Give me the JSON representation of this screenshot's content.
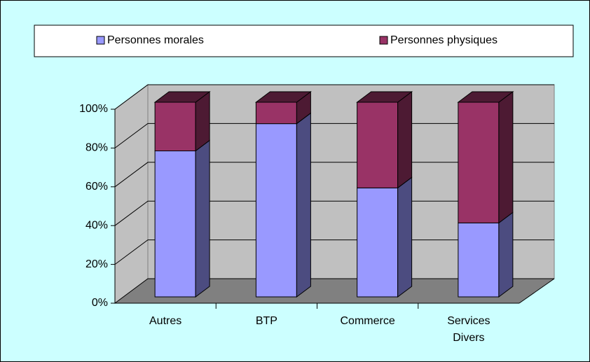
{
  "chart_data": {
    "type": "bar3d_stacked",
    "categories": [
      "Autres",
      "BTP",
      "Commerce",
      "Services Divers"
    ],
    "series": [
      {
        "name": "Personnes morales",
        "color": "#9999ff",
        "side_color": "#4c4c80",
        "values": [
          75,
          89,
          56,
          38
        ]
      },
      {
        "name": "Personnes physiques",
        "color": "#993366",
        "side_color": "#4d1a33",
        "values": [
          25,
          11,
          44,
          62
        ]
      }
    ],
    "ylim": [
      0,
      100
    ],
    "yticks": [
      {
        "value": 0,
        "label": "0%"
      },
      {
        "value": 20,
        "label": "20%"
      },
      {
        "value": 40,
        "label": "40%"
      },
      {
        "value": 60,
        "label": "60%"
      },
      {
        "value": 80,
        "label": "80%"
      },
      {
        "value": 100,
        "label": "100%"
      }
    ],
    "grid": true,
    "legend": "top"
  }
}
